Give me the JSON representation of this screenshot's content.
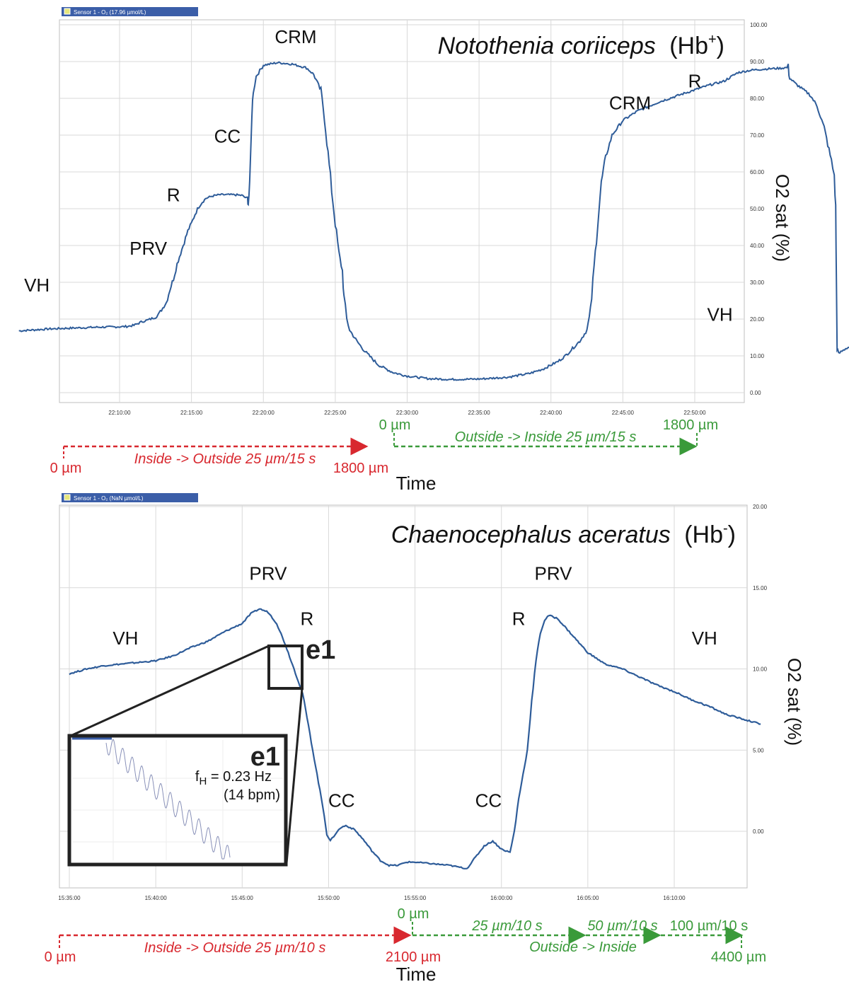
{
  "chart_data": [
    {
      "type": "line",
      "title": "Notothenia coriiceps (Hb⁺)",
      "title_main": "Notothenia coriiceps",
      "title_suffix": "(Hb",
      "title_sup": "+",
      "title_close": ")",
      "legend_label": "Sensor 1 - O₂ (17.96 µmol/L)",
      "xlabel": "Time",
      "ylabel": "O2 sat (%)",
      "xlim_min": [
        -14,
        86
      ],
      "ylim": [
        -3,
        100
      ],
      "x_ticks": [
        {
          "min": 0,
          "label": "22:10:00"
        },
        {
          "min": 10,
          "label": "22:15:00"
        },
        {
          "min": 20,
          "label": "22:20:00"
        },
        {
          "min": 30,
          "label": "22:25:00"
        },
        {
          "min": 40,
          "label": "22:30:00"
        },
        {
          "min": 50,
          "label": "22:35:00"
        },
        {
          "min": 60,
          "label": "22:40:00"
        },
        {
          "min": 70,
          "label": "22:45:00"
        },
        {
          "min": 80,
          "label": "22:50:00"
        }
      ],
      "y_ticks": [
        {
          "v": 0,
          "label": "0.00"
        },
        {
          "v": 10,
          "label": "10.00"
        },
        {
          "v": 20,
          "label": "20.00"
        },
        {
          "v": 30,
          "label": "30.00"
        },
        {
          "v": 40,
          "label": "40.00"
        },
        {
          "v": 50,
          "label": "50.00"
        },
        {
          "v": 60,
          "label": "60.00"
        },
        {
          "v": 70,
          "label": "70.00"
        },
        {
          "v": 80,
          "label": "80.00"
        },
        {
          "v": 90,
          "label": "90.00"
        },
        {
          "v": 100,
          "label": "100.00"
        }
      ],
      "series": [
        {
          "color": "#2e5c99",
          "points": [
            [
              -14,
              16.8
            ],
            [
              -10,
              17.3
            ],
            [
              -6,
              17.6
            ],
            [
              -3,
              17.8
            ],
            [
              0,
              17.9
            ],
            [
              1,
              18.0
            ],
            [
              2,
              18.3
            ],
            [
              3,
              19.2
            ],
            [
              4,
              19.8
            ],
            [
              5,
              20.5
            ],
            [
              5.5,
              21.5
            ],
            [
              6,
              23
            ],
            [
              6.5,
              24.5
            ],
            [
              7,
              28
            ],
            [
              7.5,
              31
            ],
            [
              8,
              35
            ],
            [
              8.5,
              38
            ],
            [
              9,
              41
            ],
            [
              9.5,
              44
            ],
            [
              10,
              46
            ],
            [
              10.5,
              48.5
            ],
            [
              11,
              50.5
            ],
            [
              11.5,
              51.8
            ],
            [
              12,
              52.8
            ],
            [
              13,
              53.5
            ],
            [
              14,
              53.8
            ],
            [
              16,
              53.8
            ],
            [
              17,
              53.6
            ],
            [
              17.8,
              52.7
            ],
            [
              17.9,
              51.5
            ],
            [
              18.1,
              56
            ],
            [
              18.4,
              76
            ],
            [
              18.6,
              82
            ],
            [
              19,
              86
            ],
            [
              20,
              89
            ],
            [
              22,
              89.7
            ],
            [
              24,
              89.3
            ],
            [
              26,
              88.3
            ],
            [
              27,
              86.5
            ],
            [
              28,
              82
            ],
            [
              28.5,
              75
            ],
            [
              29,
              65
            ],
            [
              29.5,
              55
            ],
            [
              30,
              46
            ],
            [
              30.5,
              38
            ],
            [
              31,
              33
            ],
            [
              31.2,
              26
            ],
            [
              31.6,
              20
            ],
            [
              32,
              17
            ],
            [
              33,
              14
            ],
            [
              34,
              11.5
            ],
            [
              35,
              9.5
            ],
            [
              36,
              7.5
            ],
            [
              38,
              5.5
            ],
            [
              40,
              4.5
            ],
            [
              43,
              3.8
            ],
            [
              46,
              3.6
            ],
            [
              50,
              3.7
            ],
            [
              54,
              4.2
            ],
            [
              57,
              5.2
            ],
            [
              59,
              6.5
            ],
            [
              61,
              8.5
            ],
            [
              62,
              10
            ],
            [
              63,
              12
            ],
            [
              64,
              14
            ],
            [
              65,
              17
            ],
            [
              65.5,
              22
            ],
            [
              66,
              34
            ],
            [
              66.5,
              46
            ],
            [
              67,
              57
            ],
            [
              67.6,
              64
            ],
            [
              68.5,
              70
            ],
            [
              70,
              74
            ],
            [
              72,
              76.5
            ],
            [
              75,
              79
            ],
            [
              78,
              81
            ],
            [
              80,
              82.3
            ],
            [
              82,
              83.6
            ],
            [
              84,
              84.6
            ],
            [
              85,
              85.8
            ],
            [
              86,
              87
            ],
            [
              88,
              87.7
            ],
            [
              90,
              88
            ],
            [
              92,
              88.2
            ],
            [
              93,
              88.4
            ],
            [
              93.2,
              85.5
            ],
            [
              94,
              84
            ],
            [
              96,
              81
            ],
            [
              97,
              78
            ],
            [
              98,
              72
            ],
            [
              99,
              63
            ],
            [
              99.4,
              59
            ],
            [
              99.6,
              50
            ],
            [
              99.7,
              30
            ],
            [
              99.8,
              12
            ],
            [
              100,
              10.6
            ],
            [
              101,
              12
            ],
            [
              102,
              12.8
            ],
            [
              104,
              13.2
            ],
            [
              107,
              12.9
            ],
            [
              110,
              12.8
            ],
            [
              113,
              12.9
            ],
            [
              116,
              12.8
            ]
          ]
        }
      ],
      "annotations": [
        {
          "text": "VH",
          "x": -11.5,
          "y": 27.5
        },
        {
          "text": "PRV",
          "x": 4,
          "y": 37.5
        },
        {
          "text": "R",
          "x": 7.5,
          "y": 52
        },
        {
          "text": "CC",
          "x": 15,
          "y": 68
        },
        {
          "text": "CRM",
          "x": 24.5,
          "y": 95
        },
        {
          "text": "CRM",
          "x": 71,
          "y": 77
        },
        {
          "text": "R",
          "x": 80,
          "y": 83
        },
        {
          "text": "VH",
          "x": 83.5,
          "y": 19.5
        }
      ],
      "protocol_arrows": [
        {
          "direction": "Inside -> Outside 25 µm/15 s",
          "start": "0 µm",
          "end": "1800 µm",
          "color": "#d8282f"
        },
        {
          "direction": "Outside -> Inside 25 µm/15 s",
          "start": "0 µm",
          "end": "1800 µm",
          "color": "#3a9a3a"
        }
      ]
    },
    {
      "type": "line",
      "title": "Chaenocephalus aceratus (Hb⁻)",
      "title_main": "Chaenocephalus aceratus",
      "title_suffix": "(Hb",
      "title_sup": "-",
      "title_close": ")",
      "legend_label": "Sensor 1 - O₂ (NaN µmol/L)",
      "xlabel": "Time",
      "ylabel": "O2 sat (%)",
      "xlim_min": [
        0,
        80
      ],
      "ylim": [
        -3.1,
        20
      ],
      "x_ticks": [
        {
          "min": 0,
          "label": "15:35:00"
        },
        {
          "min": 10,
          "label": "15:40:00"
        },
        {
          "min": 20,
          "label": "15:45:00"
        },
        {
          "min": 30,
          "label": "15:50:00"
        },
        {
          "min": 40,
          "label": "15:55:00"
        },
        {
          "min": 50,
          "label": "16:00:00"
        },
        {
          "min": 60,
          "label": "16:05:00"
        },
        {
          "min": 70,
          "label": "16:10:00"
        }
      ],
      "y_ticks": [
        {
          "v": 0,
          "label": "0.00"
        },
        {
          "v": 5,
          "label": "5.00"
        },
        {
          "v": 10,
          "label": "10.00"
        },
        {
          "v": 15,
          "label": "15.00"
        },
        {
          "v": 20,
          "label": "20.00"
        }
      ],
      "series": [
        {
          "color": "#2e5c99",
          "points": [
            [
              0,
              9.7
            ],
            [
              2,
              10.0
            ],
            [
              4,
              10.2
            ],
            [
              6,
              10.3
            ],
            [
              8,
              10.4
            ],
            [
              10,
              10.5
            ],
            [
              12,
              10.8
            ],
            [
              14,
              11.3
            ],
            [
              16,
              11.7
            ],
            [
              18,
              12.3
            ],
            [
              20,
              12.8
            ],
            [
              21,
              13.4
            ],
            [
              22,
              13.7
            ],
            [
              23,
              13.5
            ],
            [
              24,
              12.8
            ],
            [
              25,
              11.5
            ],
            [
              26,
              10
            ],
            [
              27,
              8.5
            ],
            [
              27.5,
              7
            ],
            [
              28,
              5.5
            ],
            [
              28.5,
              4
            ],
            [
              29,
              2.5
            ],
            [
              29.5,
              1
            ],
            [
              29.8,
              -0.2
            ],
            [
              30.2,
              -0.6
            ],
            [
              30.6,
              -0.3
            ],
            [
              31,
              0
            ],
            [
              31.5,
              0.25
            ],
            [
              32,
              0.35
            ],
            [
              33,
              0.1
            ],
            [
              34,
              -0.5
            ],
            [
              35,
              -1.2
            ],
            [
              36,
              -1.8
            ],
            [
              37,
              -2.1
            ],
            [
              38,
              -2.1
            ],
            [
              39,
              -1.9
            ],
            [
              40,
              -1.9
            ],
            [
              42,
              -2.0
            ],
            [
              44,
              -2.1
            ],
            [
              46,
              -2.3
            ],
            [
              47,
              -1.6
            ],
            [
              48,
              -0.9
            ],
            [
              49,
              -0.6
            ],
            [
              50,
              -1.1
            ],
            [
              51,
              -1.3
            ],
            [
              51.5,
              0
            ],
            [
              52,
              2
            ],
            [
              53,
              5
            ],
            [
              53.5,
              8
            ],
            [
              54,
              10.5
            ],
            [
              54.5,
              12.2
            ],
            [
              55,
              13
            ],
            [
              55.5,
              13.3
            ],
            [
              56.5,
              13.1
            ],
            [
              58,
              12.2
            ],
            [
              60,
              11
            ],
            [
              62,
              10.3
            ],
            [
              64,
              10
            ],
            [
              66,
              9.5
            ],
            [
              68,
              9.0
            ],
            [
              70,
              8.6
            ],
            [
              72,
              8.1
            ],
            [
              74,
              7.7
            ],
            [
              76,
              7.2
            ],
            [
              78,
              6.9
            ],
            [
              80,
              6.6
            ]
          ]
        }
      ],
      "annotations": [
        {
          "text": "VH",
          "x": 6.5,
          "y": 11.5
        },
        {
          "text": "PRV",
          "x": 23,
          "y": 15.5
        },
        {
          "text": "R",
          "x": 27.5,
          "y": 12.7
        },
        {
          "text": "CC",
          "x": 31.5,
          "y": 1.5
        },
        {
          "text": "PRV",
          "x": 56,
          "y": 15.5
        },
        {
          "text": "R",
          "x": 52,
          "y": 12.7
        },
        {
          "text": "CC",
          "x": 48.5,
          "y": 1.5
        },
        {
          "text": "VH",
          "x": 73.5,
          "y": 11.5
        }
      ],
      "inset": {
        "label": "e1",
        "line1": "f",
        "line1_sub": "H",
        "line1_rest": " = 0.23 Hz",
        "line2": "(14 bpm)"
      },
      "protocol_arrows": [
        {
          "direction": "Inside -> Outside 25 µm/10 s",
          "start": "0 µm",
          "end": "2100 µm",
          "color": "#d8282f"
        },
        {
          "direction": "Outside -> Inside",
          "start": "0 µm",
          "end": "4400 µm",
          "step1": "25 µm/10 s",
          "step2": "50 µm/10 s",
          "step3": "100 µm/10 s",
          "color": "#3a9a3a"
        }
      ]
    }
  ]
}
